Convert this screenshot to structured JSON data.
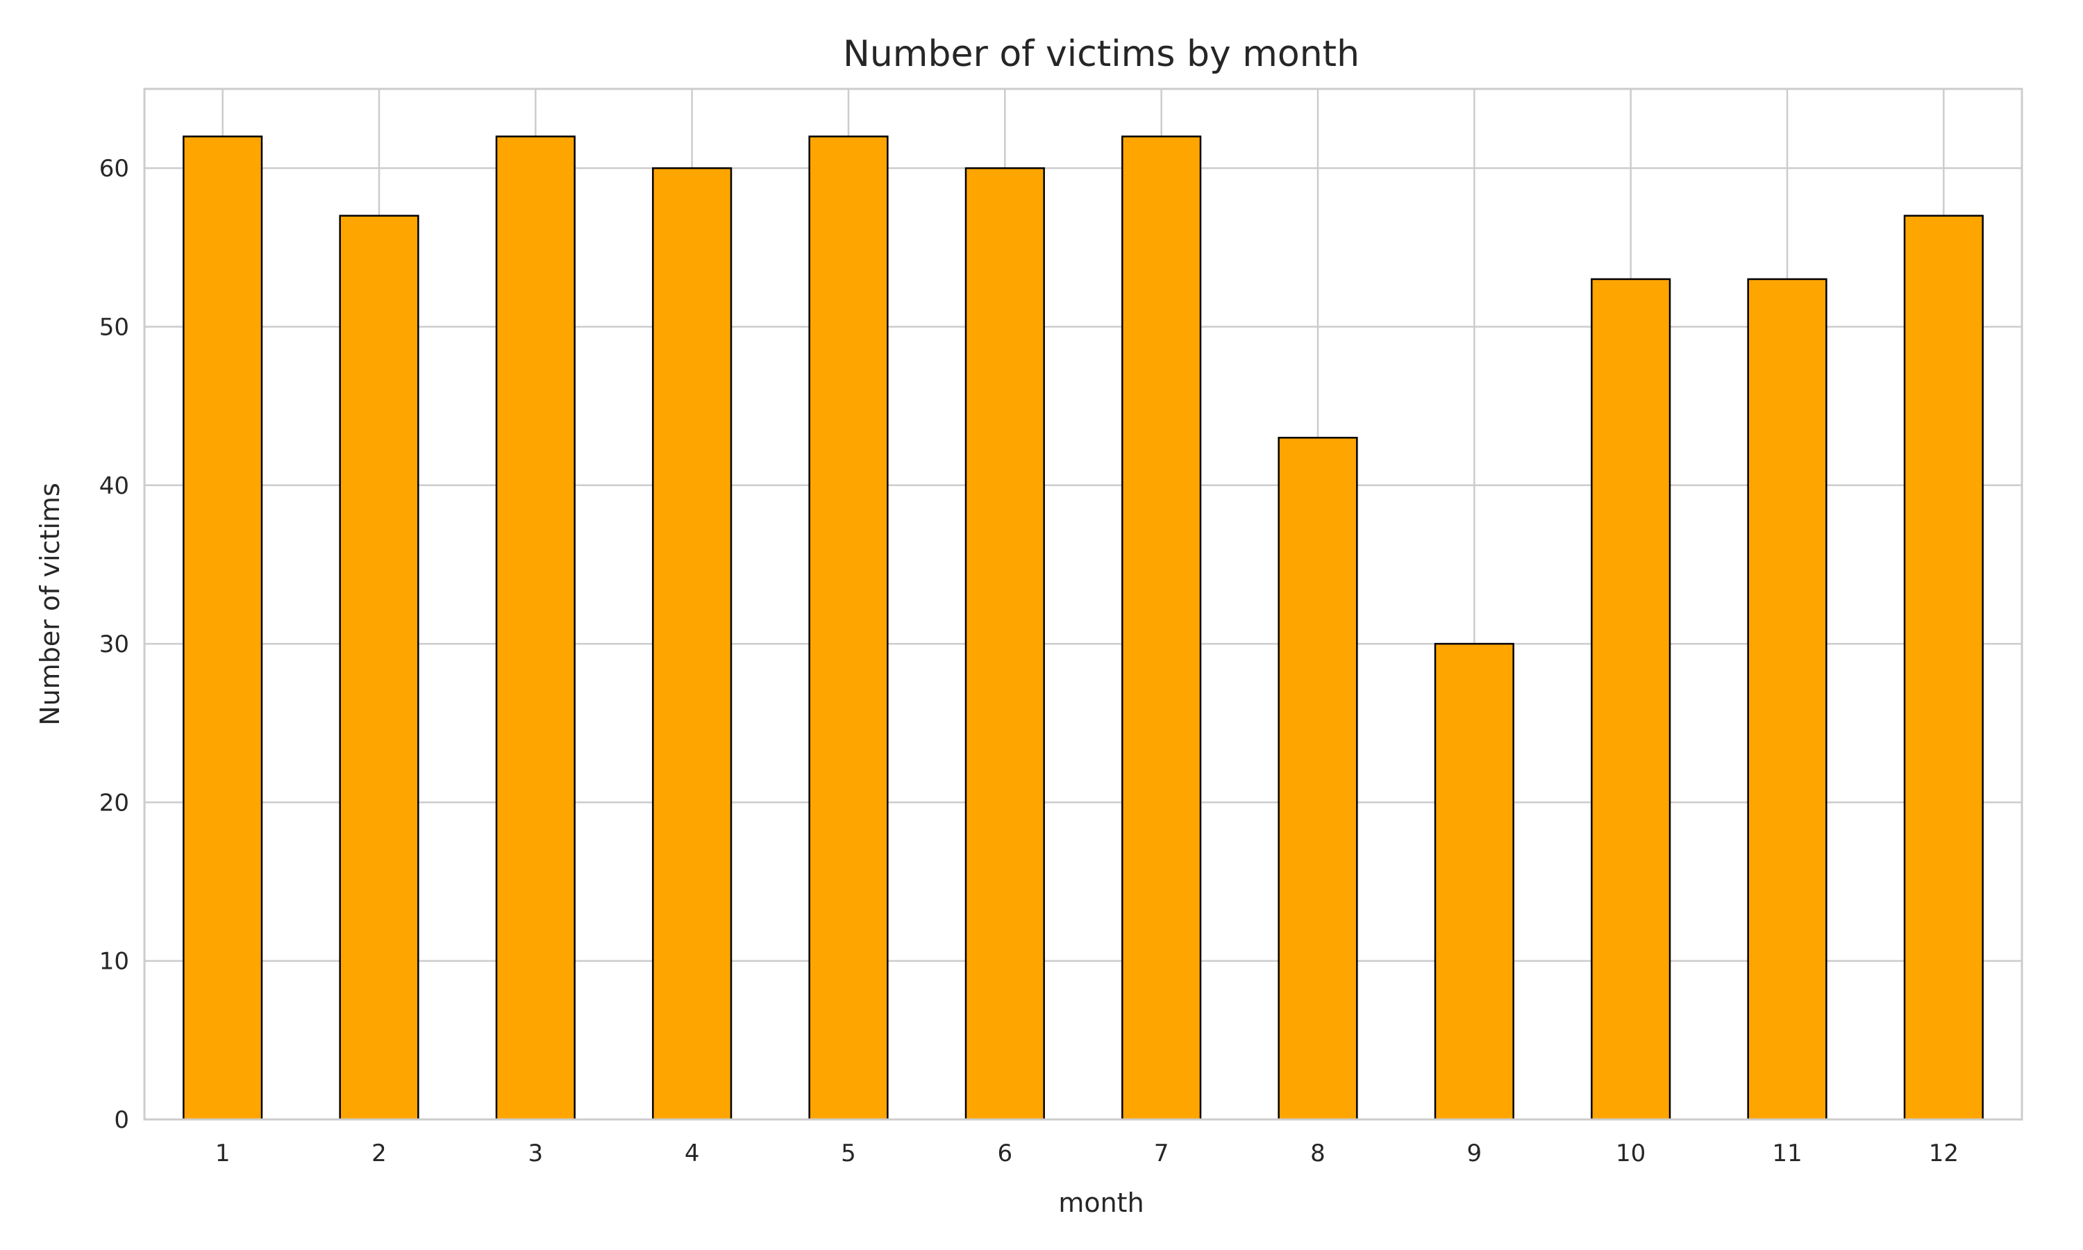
{
  "chart_data": {
    "type": "bar",
    "title": "Number of victims by month",
    "xlabel": "month",
    "ylabel": "Number of victims",
    "categories": [
      "1",
      "2",
      "3",
      "4",
      "5",
      "6",
      "7",
      "8",
      "9",
      "10",
      "11",
      "12"
    ],
    "values": [
      62,
      57,
      62,
      60,
      62,
      60,
      62,
      43,
      30,
      53,
      53,
      57
    ],
    "ylim": [
      0,
      65
    ],
    "yticks": [
      0,
      10,
      20,
      30,
      40,
      50,
      60
    ],
    "grid": true,
    "bar_color": "#FFA500",
    "edge_color": "#000000",
    "grid_color": "#cccccc",
    "text_color": "#262626"
  }
}
